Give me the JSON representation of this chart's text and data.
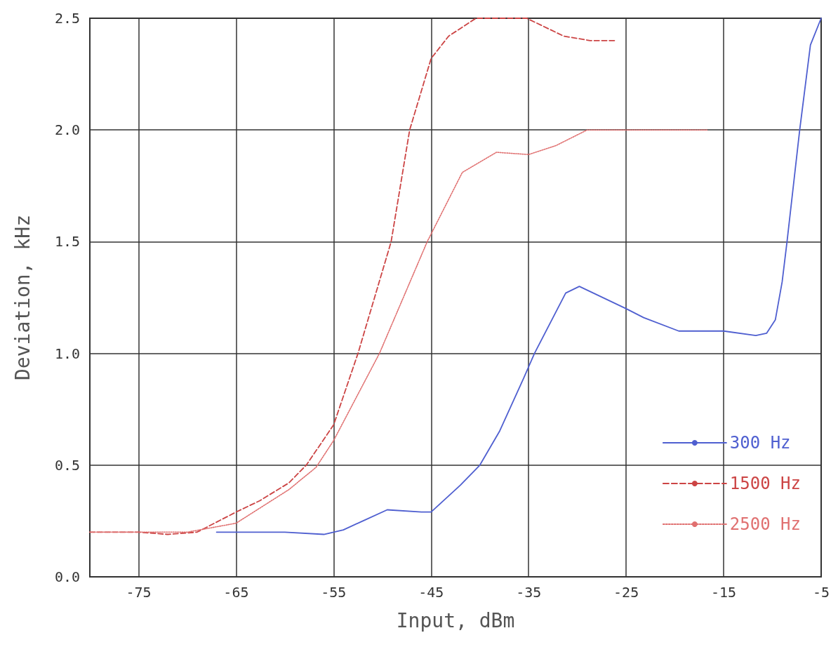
{
  "chart_data": {
    "type": "line",
    "xlabel": "Input, dBm",
    "ylabel": "Deviation, kHz",
    "xlim": [
      -80,
      -5
    ],
    "xticks": [
      -75,
      -65,
      -55,
      -45,
      -35,
      -25,
      -15,
      -5
    ],
    "ylim": [
      0,
      2.5
    ],
    "yticks": [
      {
        "value": 0,
        "label": "0.0"
      },
      {
        "value": 0.5,
        "label": "0.5"
      },
      {
        "value": 1,
        "label": "1.0"
      },
      {
        "value": 1.5,
        "label": "1.5"
      },
      {
        "value": 2,
        "label": "2.0"
      },
      {
        "value": 2.5,
        "label": "2.5"
      }
    ],
    "grid": true,
    "legend": "bottom right",
    "marker": "none",
    "series": [
      {
        "name": "300 Hz",
        "color": "#4f5fd0",
        "line_style": "solid",
        "x": [
          -67,
          -60,
          -56,
          -54,
          -52,
          -49.5,
          -46,
          -45,
          -42,
          -40,
          -38,
          -35.5,
          -34.4,
          -31.2,
          -29.8,
          -25,
          -23.2,
          -19.6,
          -15,
          -11.7,
          -10.6,
          -9.7,
          -9,
          -8.5,
          -7.2,
          -6.1,
          -5
        ],
        "values": [
          0.2,
          0.2,
          0.19,
          0.21,
          0.25,
          0.3,
          0.29,
          0.29,
          0.41,
          0.5,
          0.65,
          0.89,
          1.0,
          1.27,
          1.3,
          1.2,
          1.16,
          1.1,
          1.1,
          1.08,
          1.09,
          1.15,
          1.32,
          1.5,
          2.0,
          2.38,
          2.5
        ]
      },
      {
        "name": "1500 Hz",
        "color": "#cc4444",
        "line_style": "dashed",
        "x": [
          -80,
          -75,
          -72,
          -69,
          -65,
          -62.6,
          -59.6,
          -57.8,
          -55,
          -52.5,
          -49.1,
          -47.2,
          -45,
          -43.2,
          -40.4,
          -35.2,
          -31.4,
          -28.7,
          -26.1
        ],
        "values": [
          0.2,
          0.2,
          0.19,
          0.2,
          0.29,
          0.34,
          0.42,
          0.5,
          0.68,
          1.0,
          1.5,
          2.0,
          2.32,
          2.42,
          2.5,
          2.5,
          2.42,
          2.4,
          2.4
        ]
      },
      {
        "name": "2500 Hz",
        "color": "#e07070",
        "line_style": "dotted",
        "x": [
          -80,
          -70,
          -65,
          -59.6,
          -56.8,
          -55,
          -50.3,
          -45.4,
          -41.8,
          -38.3,
          -35,
          -32.2,
          -29,
          -16.7
        ],
        "values": [
          0.2,
          0.2,
          0.24,
          0.39,
          0.49,
          0.61,
          1.0,
          1.5,
          1.81,
          1.9,
          1.89,
          1.93,
          2.0,
          2.0
        ]
      }
    ]
  }
}
